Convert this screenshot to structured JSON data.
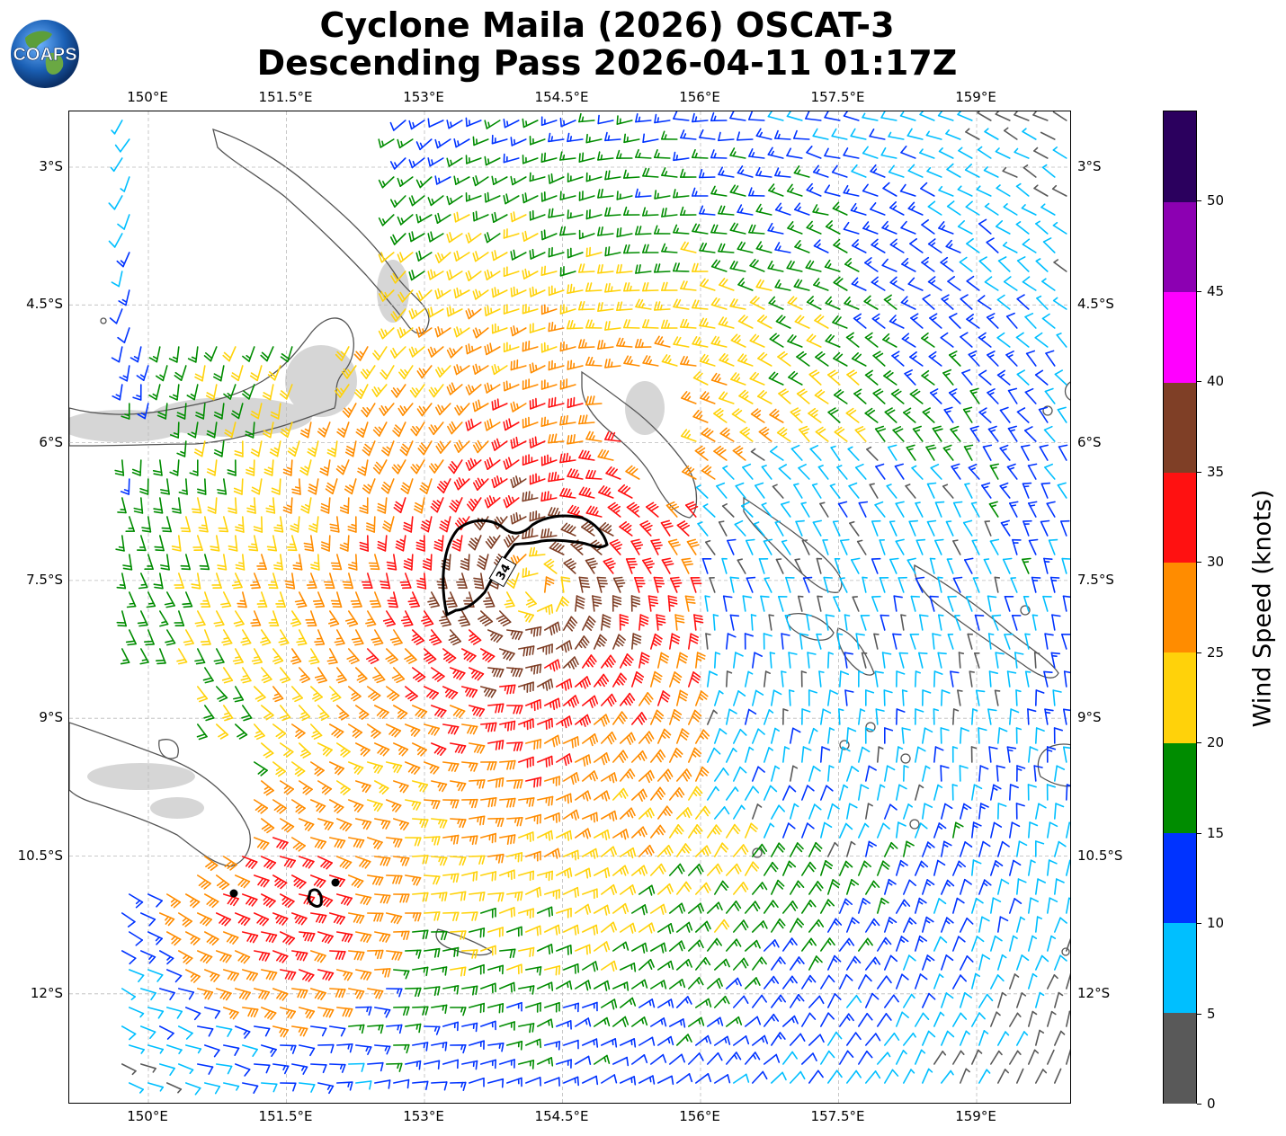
{
  "header": {
    "title_line1": "Cyclone Maila (2026) OSCAT-3",
    "title_line2": "Descending Pass 2026-04-11 01:17Z",
    "logo_text": "COAPS"
  },
  "map": {
    "lon_labels": [
      "150°E",
      "151.5°E",
      "153°E",
      "154.5°E",
      "156°E",
      "157.5°E",
      "159°E"
    ],
    "lat_labels": [
      "3°S",
      "4.5°S",
      "6°S",
      "7.5°S",
      "9°S",
      "10.5°S",
      "12°S"
    ],
    "contour_label": "34",
    "land_color": "#ffffff",
    "coastline_color": "#555555"
  },
  "colorbar": {
    "title": "Wind Speed (knots)",
    "ticks": [
      "0",
      "5",
      "10",
      "15",
      "20",
      "25",
      "30",
      "35",
      "40",
      "45",
      "50"
    ],
    "colors": [
      "#595959",
      "#00bfff",
      "#0033ff",
      "#008c00",
      "#ffd20a",
      "#ff8c00",
      "#ff1111",
      "#7f3f26",
      "#ff00ff",
      "#8c00b2",
      "#2b005e"
    ]
  }
}
